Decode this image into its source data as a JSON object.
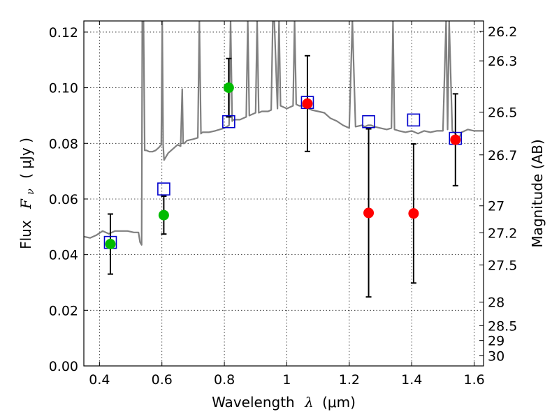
{
  "chart_data": {
    "type": "scatter",
    "title": "",
    "xlabel": "Wavelength",
    "xlabel_math": "λ",
    "xlabel_unit": "(μm)",
    "ylabel": "Flux",
    "ylabel_math": "F",
    "ylabel_math_sub": "ν",
    "ylabel_unit": "( μJy )",
    "y2label": "Magnitude (AB)",
    "xlim": [
      0.35,
      1.63
    ],
    "ylim": [
      0.0,
      0.124
    ],
    "grid": true,
    "x_ticks": [
      {
        "value": 0.4,
        "label": "0.4"
      },
      {
        "value": 0.6,
        "label": "0.6"
      },
      {
        "value": 0.8,
        "label": "0.8"
      },
      {
        "value": 1.0,
        "label": "1"
      },
      {
        "value": 1.2,
        "label": "1.2"
      },
      {
        "value": 1.4,
        "label": "1.4"
      },
      {
        "value": 1.6,
        "label": "1.6"
      }
    ],
    "y_ticks": [
      {
        "value": 0.0,
        "label": "0.00"
      },
      {
        "value": 0.02,
        "label": "0.02"
      },
      {
        "value": 0.04,
        "label": "0.04"
      },
      {
        "value": 0.06,
        "label": "0.06"
      },
      {
        "value": 0.08,
        "label": "0.08"
      },
      {
        "value": 0.1,
        "label": "0.10"
      },
      {
        "value": 0.12,
        "label": "0.12"
      }
    ],
    "y2_ticks": [
      {
        "mag": 26.2,
        "label": "26.2"
      },
      {
        "mag": 26.3,
        "label": "26.3"
      },
      {
        "mag": 26.5,
        "label": "26.5"
      },
      {
        "mag": 26.7,
        "label": "26.7"
      },
      {
        "mag": 27.0,
        "label": "27"
      },
      {
        "mag": 27.2,
        "label": "27.2"
      },
      {
        "mag": 27.5,
        "label": "27.5"
      },
      {
        "mag": 28.0,
        "label": "28"
      },
      {
        "mag": 28.5,
        "label": "28.5"
      },
      {
        "mag": 29.0,
        "label": "29"
      },
      {
        "mag": 30.0,
        "label": "30"
      }
    ],
    "series": [
      {
        "kind": "line",
        "color": "#808080",
        "x": [
          0.35,
          0.37,
          0.39,
          0.41,
          0.43,
          0.45,
          0.47,
          0.49,
          0.51,
          0.525,
          0.53,
          0.535,
          0.537,
          0.541,
          0.545,
          0.55,
          0.56,
          0.57,
          0.58,
          0.59,
          0.598,
          0.601,
          0.604,
          0.607,
          0.62,
          0.63,
          0.64,
          0.65,
          0.66,
          0.665,
          0.668,
          0.672,
          0.68,
          0.7,
          0.715,
          0.72,
          0.725,
          0.73,
          0.75,
          0.77,
          0.8,
          0.815,
          0.82,
          0.825,
          0.83,
          0.85,
          0.87,
          0.875,
          0.88,
          0.89,
          0.9,
          0.905,
          0.91,
          0.92,
          0.94,
          0.95,
          0.955,
          0.96,
          0.97,
          0.975,
          0.98,
          0.99,
          1.0,
          1.01,
          1.02,
          1.025,
          1.03,
          1.04,
          1.05,
          1.06,
          1.08,
          1.1,
          1.12,
          1.14,
          1.16,
          1.18,
          1.2,
          1.21,
          1.22,
          1.24,
          1.25,
          1.26,
          1.27,
          1.28,
          1.3,
          1.32,
          1.335,
          1.34,
          1.345,
          1.36,
          1.38,
          1.4,
          1.42,
          1.44,
          1.46,
          1.48,
          1.5,
          1.51,
          1.515,
          1.52,
          1.53,
          1.54,
          1.55,
          1.56,
          1.57,
          1.58,
          1.6,
          1.62,
          1.63
        ],
        "y": [
          0.0465,
          0.046,
          0.047,
          0.0485,
          0.0475,
          0.0485,
          0.0485,
          0.0485,
          0.048,
          0.048,
          0.0445,
          0.0435,
          0.124,
          0.124,
          0.0775,
          0.0775,
          0.077,
          0.077,
          0.0775,
          0.0785,
          0.0795,
          0.124,
          0.0795,
          0.074,
          0.0765,
          0.0775,
          0.0785,
          0.0795,
          0.079,
          0.0995,
          0.08,
          0.08,
          0.081,
          0.0815,
          0.082,
          0.124,
          0.0835,
          0.084,
          0.084,
          0.0845,
          0.0855,
          0.0865,
          0.124,
          0.088,
          0.0885,
          0.0885,
          0.0895,
          0.124,
          0.09,
          0.0905,
          0.091,
          0.124,
          0.091,
          0.0915,
          0.0915,
          0.092,
          0.124,
          0.124,
          0.0925,
          0.124,
          0.0935,
          0.093,
          0.0925,
          0.093,
          0.0935,
          0.124,
          0.094,
          0.0935,
          0.0935,
          0.093,
          0.092,
          0.0915,
          0.091,
          0.089,
          0.088,
          0.0865,
          0.0855,
          0.124,
          0.086,
          0.0865,
          0.086,
          0.0865,
          0.0865,
          0.086,
          0.0855,
          0.085,
          0.0855,
          0.124,
          0.085,
          0.0845,
          0.084,
          0.0845,
          0.0835,
          0.0845,
          0.084,
          0.0845,
          0.0845,
          0.124,
          0.085,
          0.124,
          0.0845,
          0.0835,
          0.0815,
          0.084,
          0.0845,
          0.085,
          0.0845,
          0.0845,
          0.0845
        ]
      },
      {
        "kind": "points",
        "marker": "circle",
        "color": "#00bb00",
        "points": [
          {
            "x": 0.435,
            "y": 0.0438,
            "err": 0.0108
          },
          {
            "x": 0.606,
            "y": 0.0542,
            "err": 0.0068
          },
          {
            "x": 0.814,
            "y": 0.1,
            "err": 0.0105
          }
        ]
      },
      {
        "kind": "points",
        "marker": "circle",
        "color": "#ff0000",
        "points": [
          {
            "x": 1.066,
            "y": 0.0943,
            "err": 0.0172
          },
          {
            "x": 1.262,
            "y": 0.055,
            "err": 0.0302
          },
          {
            "x": 1.406,
            "y": 0.0548,
            "err": 0.025
          },
          {
            "x": 1.54,
            "y": 0.0813,
            "err": 0.0165
          }
        ]
      },
      {
        "kind": "points",
        "marker": "open-square",
        "color": "#0000cc",
        "points": [
          {
            "x": 0.435,
            "y": 0.0444
          },
          {
            "x": 0.606,
            "y": 0.0636
          },
          {
            "x": 0.814,
            "y": 0.0878
          },
          {
            "x": 1.066,
            "y": 0.0947
          },
          {
            "x": 1.262,
            "y": 0.0878
          },
          {
            "x": 1.406,
            "y": 0.0884
          },
          {
            "x": 1.54,
            "y": 0.0818
          }
        ]
      }
    ]
  }
}
